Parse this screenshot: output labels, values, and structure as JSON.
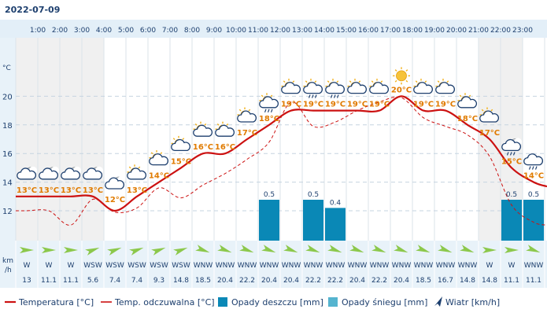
{
  "header": {
    "date": "2022-07-09"
  },
  "y_axis": {
    "unit": "°C",
    "ticks": [
      "12",
      "14",
      "16",
      "18",
      "20"
    ]
  },
  "wind_axis": {
    "unit_line1": "km",
    "unit_line2": "/h"
  },
  "legend": {
    "temperature": "Temperatura [°C]",
    "feels_like": "Temp. odczuwalna [°C]",
    "rain": "Opady deszczu [mm]",
    "snow": "Opady śniegu [mm]",
    "wind": "Wiatr [km/h]"
  },
  "colors": {
    "temperature": "#cc1111",
    "feels_like": "#cc1111",
    "rain_bar": "#0a88b6",
    "snow_bar": "#55b4cf",
    "wind_arrow": "#8cc84b",
    "temp_label": "#e07b00",
    "wind_legend_arrow": "#1d3f6e",
    "shaded_hours": "#f0f0f0"
  },
  "hours": [
    {
      "label": "1:00",
      "temp": 13,
      "temp_label": "13°C",
      "feels": 12.0,
      "icon": "moon-partly-cloudy-icon",
      "rain": null,
      "wind_dir": "W",
      "wind_speed": "13",
      "shaded": true
    },
    {
      "label": "2:00",
      "temp": 13,
      "temp_label": "13°C",
      "feels": 12.0,
      "icon": "moon-partly-cloudy-icon",
      "rain": null,
      "wind_dir": "W",
      "wind_speed": "11.1",
      "shaded": true
    },
    {
      "label": "3:00",
      "temp": 13,
      "temp_label": "13°C",
      "feels": 11.0,
      "icon": "moon-partly-cloudy-icon",
      "rain": null,
      "wind_dir": "W",
      "wind_speed": "11.1",
      "shaded": true
    },
    {
      "label": "4:00",
      "temp": 13,
      "temp_label": "13°C",
      "feels": 12.8,
      "icon": "moon-partly-cloudy-icon",
      "rain": null,
      "wind_dir": "WSW",
      "wind_speed": "5.6",
      "shaded": true
    },
    {
      "label": "5:00",
      "temp": 12,
      "temp_label": "12°C",
      "feels": 11.9,
      "icon": "moon-partly-cloudy-icon",
      "rain": null,
      "wind_dir": "WSW",
      "wind_speed": "7.4",
      "shaded": false
    },
    {
      "label": "6:00",
      "temp": 13,
      "temp_label": "13°C",
      "feels": 12.2,
      "icon": "sun-cloud-icon",
      "rain": null,
      "wind_dir": "WSW",
      "wind_speed": "7.4",
      "shaded": false
    },
    {
      "label": "7:00",
      "temp": 14,
      "temp_label": "14°C",
      "feels": 13.6,
      "icon": "sun-cloud-icon",
      "rain": null,
      "wind_dir": "WSW",
      "wind_speed": "9.3",
      "shaded": false
    },
    {
      "label": "8:00",
      "temp": 15,
      "temp_label": "15°C",
      "feels": 12.9,
      "icon": "sun-cloud-icon",
      "rain": null,
      "wind_dir": "WSW",
      "wind_speed": "14.8",
      "shaded": false
    },
    {
      "label": "9:00",
      "temp": 16,
      "temp_label": "16°C",
      "feels": 13.8,
      "icon": "sun-cloud-icon",
      "rain": null,
      "wind_dir": "WNW",
      "wind_speed": "18.5",
      "shaded": false
    },
    {
      "label": "10:00",
      "temp": 16,
      "temp_label": "16°C",
      "feels": 14.6,
      "icon": "sun-cloud-icon",
      "rain": null,
      "wind_dir": "WNW",
      "wind_speed": "20.4",
      "shaded": false
    },
    {
      "label": "11:00",
      "temp": 17,
      "temp_label": "17°C",
      "feels": 15.6,
      "icon": "sun-cloud-icon",
      "rain": null,
      "wind_dir": "WNW",
      "wind_speed": "22.2",
      "shaded": false
    },
    {
      "label": "12:00",
      "temp": 18,
      "temp_label": "18°C",
      "feels": 16.8,
      "icon": "sun-cloud-rain-icon",
      "rain": 0.5,
      "wind_dir": "WNW",
      "wind_speed": "20.4",
      "shaded": false
    },
    {
      "label": "13:00",
      "temp": 19,
      "temp_label": "19°C",
      "feels": 19.6,
      "icon": "sun-cloud-icon",
      "rain": null,
      "wind_dir": "WNW",
      "wind_speed": "20.4",
      "shaded": false
    },
    {
      "label": "14:00",
      "temp": 19,
      "temp_label": "19°C",
      "feels": 17.9,
      "icon": "sun-cloud-rain-icon",
      "rain": 0.5,
      "wind_dir": "WNW",
      "wind_speed": "22.2",
      "shaded": false
    },
    {
      "label": "15:00",
      "temp": 19,
      "temp_label": "19°C",
      "feels": 18.2,
      "icon": "sun-cloud-rain-icon",
      "rain": 0.4,
      "wind_dir": "WNW",
      "wind_speed": "22.2",
      "shaded": false
    },
    {
      "label": "16:00",
      "temp": 19,
      "temp_label": "19°C",
      "feels": 19.0,
      "icon": "sun-cloud-icon",
      "rain": null,
      "wind_dir": "WNW",
      "wind_speed": "20.4",
      "shaded": false
    },
    {
      "label": "17:00",
      "temp": 19,
      "temp_label": "19°C",
      "feels": 19.6,
      "icon": "sun-cloud-icon",
      "rain": null,
      "wind_dir": "WNW",
      "wind_speed": "22.2",
      "shaded": false
    },
    {
      "label": "18:00",
      "temp": 20,
      "temp_label": "20°C",
      "feels": 19.9,
      "icon": "sun-icon",
      "rain": null,
      "wind_dir": "WNW",
      "wind_speed": "20.4",
      "shaded": false
    },
    {
      "label": "19:00",
      "temp": 19,
      "temp_label": "19°C",
      "feels": 18.5,
      "icon": "sun-cloud-icon",
      "rain": null,
      "wind_dir": "WNW",
      "wind_speed": "18.5",
      "shaded": false
    },
    {
      "label": "20:00",
      "temp": 19,
      "temp_label": "19°C",
      "feels": 17.9,
      "icon": "sun-cloud-icon",
      "rain": null,
      "wind_dir": "WNW",
      "wind_speed": "16.7",
      "shaded": false
    },
    {
      "label": "21:00",
      "temp": 18,
      "temp_label": "18°C",
      "feels": 17.3,
      "icon": "sun-cloud-icon",
      "rain": null,
      "wind_dir": "WNW",
      "wind_speed": "14.8",
      "shaded": false
    },
    {
      "label": "22:00",
      "temp": 17,
      "temp_label": "17°C",
      "feels": 15.8,
      "icon": "sun-cloud-icon",
      "rain": null,
      "wind_dir": "W",
      "wind_speed": "14.8",
      "shaded": true
    },
    {
      "label": "23:00",
      "temp": 15,
      "temp_label": "15°C",
      "feels": 12.4,
      "icon": "moon-cloud-rain-icon",
      "rain": 0.5,
      "wind_dir": "W",
      "wind_speed": "11.1",
      "shaded": true
    },
    {
      "label": "",
      "temp": 14,
      "temp_label": "14°C",
      "feels": 11.2,
      "icon": "cloud-rain-icon",
      "rain": 0.5,
      "wind_dir": "WNW",
      "wind_speed": "11.1",
      "shaded": false
    }
  ]
}
